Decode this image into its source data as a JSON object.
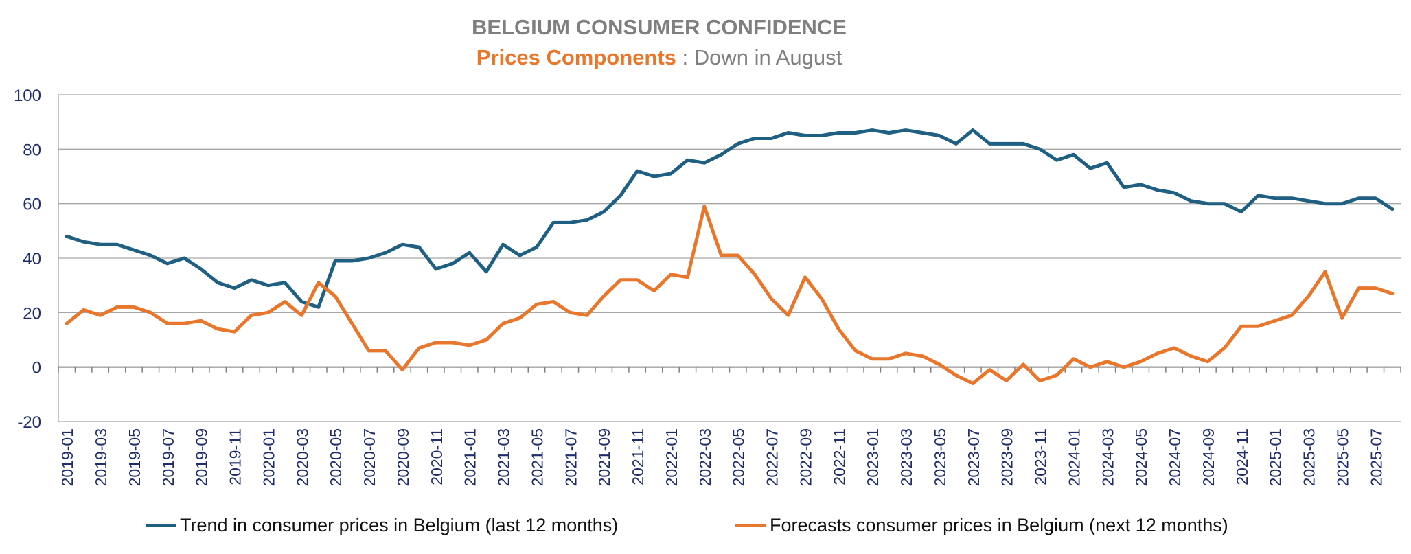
{
  "title": "BELGIUM CONSUMER CONFIDENCE",
  "subtitle": {
    "highlight": "Prices Components",
    "separator": " : ",
    "rest": "Down in August"
  },
  "colors": {
    "trend": "#1f5f82",
    "forecast": "#e8762c",
    "title": "#7f7f7f",
    "axis": "#1f2d6b",
    "grid": "#a6a6a6"
  },
  "chart_data": {
    "type": "line",
    "ylim": [
      -20,
      100
    ],
    "yticks": [
      -20,
      0,
      20,
      40,
      60,
      80,
      100
    ],
    "grid": true,
    "legend_position": "bottom",
    "x": [
      "2019-01",
      "2019-02",
      "2019-03",
      "2019-04",
      "2019-05",
      "2019-06",
      "2019-07",
      "2019-08",
      "2019-09",
      "2019-10",
      "2019-11",
      "2019-12",
      "2020-01",
      "2020-02",
      "2020-03",
      "2020-04",
      "2020-05",
      "2020-06",
      "2020-07",
      "2020-08",
      "2020-09",
      "2020-10",
      "2020-11",
      "2020-12",
      "2021-01",
      "2021-02",
      "2021-03",
      "2021-04",
      "2021-05",
      "2021-06",
      "2021-07",
      "2021-08",
      "2021-09",
      "2021-10",
      "2021-11",
      "2021-12",
      "2022-01",
      "2022-02",
      "2022-03",
      "2022-04",
      "2022-05",
      "2022-06",
      "2022-07",
      "2022-08",
      "2022-09",
      "2022-10",
      "2022-11",
      "2022-12",
      "2023-01",
      "2023-02",
      "2023-03",
      "2023-04",
      "2023-05",
      "2023-06",
      "2023-07",
      "2023-08",
      "2023-09",
      "2023-10",
      "2023-11",
      "2023-12",
      "2024-01",
      "2024-02",
      "2024-03",
      "2024-04",
      "2024-05",
      "2024-06",
      "2024-07",
      "2024-08",
      "2024-09",
      "2024-10",
      "2024-11",
      "2024-12",
      "2025-01",
      "2025-02",
      "2025-03",
      "2025-04",
      "2025-05",
      "2025-06",
      "2025-07",
      "2025-08"
    ],
    "tick_labels": [
      "2019-01",
      "2019-03",
      "2019-05",
      "2019-07",
      "2019-09",
      "2019-11",
      "2020-01",
      "2020-03",
      "2020-05",
      "2020-07",
      "2020-09",
      "2020-11",
      "2021-01",
      "2021-03",
      "2021-05",
      "2021-07",
      "2021-09",
      "2021-11",
      "2022-01",
      "2022-03",
      "2022-05",
      "2022-07",
      "2022-09",
      "2022-11",
      "2023-01",
      "2023-03",
      "2023-05",
      "2023-07",
      "2023-09",
      "2023-11",
      "2024-01",
      "2024-03",
      "2024-05",
      "2024-07",
      "2024-09",
      "2024-11",
      "2025-01",
      "2025-03",
      "2025-05",
      "2025-07"
    ],
    "series": [
      {
        "name": "Trend in consumer prices in Belgium (last 12 months)",
        "color": "#1f5f82",
        "values": [
          48,
          46,
          45,
          45,
          43,
          41,
          38,
          40,
          36,
          31,
          29,
          32,
          30,
          31,
          24,
          22,
          39,
          39,
          40,
          42,
          45,
          44,
          36,
          38,
          42,
          35,
          45,
          41,
          44,
          53,
          53,
          54,
          57,
          63,
          72,
          70,
          71,
          76,
          75,
          78,
          82,
          84,
          84,
          86,
          85,
          85,
          86,
          86,
          87,
          86,
          87,
          86,
          85,
          82,
          87,
          82,
          82,
          82,
          80,
          76,
          78,
          73,
          75,
          66,
          67,
          65,
          64,
          61,
          60,
          60,
          57,
          63,
          62,
          62,
          61,
          60,
          60,
          62,
          62,
          58
        ]
      },
      {
        "name": "Forecasts consumer prices in Belgium (next 12 months)",
        "color": "#e8762c",
        "values": [
          16,
          21,
          19,
          22,
          22,
          20,
          16,
          16,
          17,
          14,
          13,
          19,
          20,
          24,
          19,
          31,
          26,
          16,
          6,
          6,
          -1,
          7,
          9,
          9,
          8,
          10,
          16,
          18,
          23,
          24,
          20,
          19,
          26,
          32,
          32,
          28,
          34,
          33,
          59,
          41,
          41,
          34,
          25,
          19,
          33,
          25,
          14,
          6,
          3,
          3,
          5,
          4,
          1,
          -3,
          -6,
          -1,
          -5,
          1,
          -5,
          -3,
          3,
          0,
          2,
          0,
          2,
          5,
          7,
          4,
          2,
          7,
          15,
          15,
          17,
          19,
          26,
          35,
          18,
          29,
          29,
          27
        ]
      }
    ]
  }
}
